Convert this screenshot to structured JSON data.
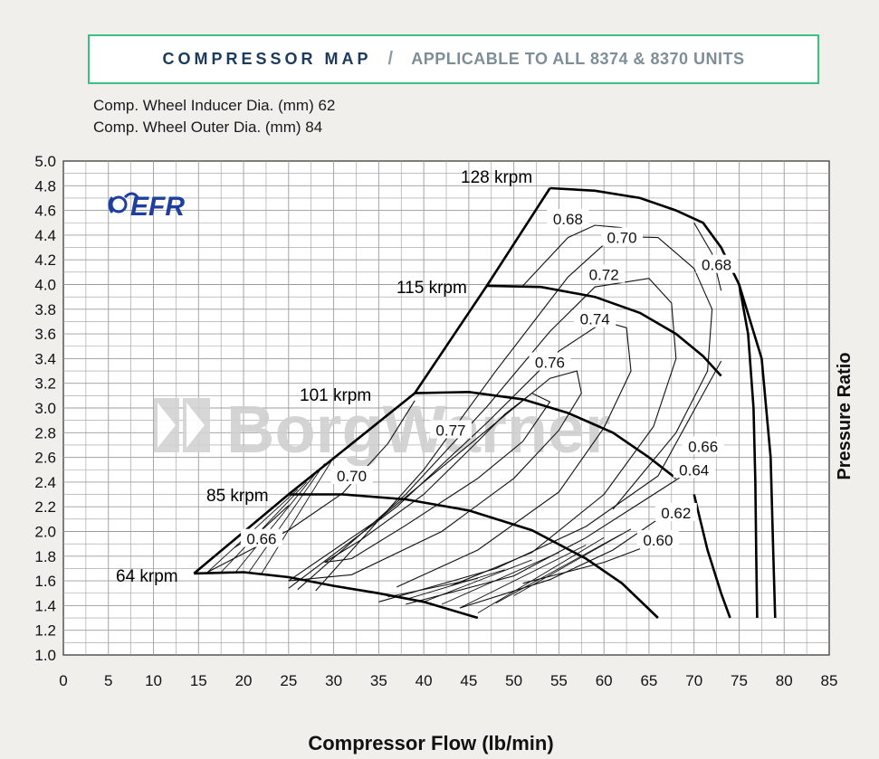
{
  "header": {
    "title": "COMPRESSOR MAP",
    "separator": "/",
    "subtitle": "APPLICABLE TO ALL 8374 & 8370 UNITS"
  },
  "specs": {
    "inducer": "Comp. Wheel Inducer Dia. (mm) 62",
    "outer": "Comp. Wheel Outer Dia. (mm) 84"
  },
  "logos": {
    "efr": "EFR",
    "watermark": "BorgWarner"
  },
  "colors": {
    "title_border": "#3dbf7f",
    "title_text": "#1b3a5c",
    "efr_blue": "#1e3f9e",
    "grid": "#999999",
    "watermark": "#c8c8c8"
  },
  "chart_data": {
    "type": "line",
    "title": "Compressor Map",
    "xlabel": "Compressor Flow (lb/min)",
    "ylabel": "Pressure Ratio",
    "xlim": [
      0,
      85
    ],
    "ylim": [
      1.0,
      5.0
    ],
    "xticks": [
      0,
      5,
      10,
      15,
      20,
      25,
      30,
      35,
      40,
      45,
      50,
      55,
      60,
      65,
      70,
      75,
      80,
      85
    ],
    "yticks": [
      1.0,
      1.2,
      1.4,
      1.6,
      1.8,
      2.0,
      2.2,
      2.4,
      2.6,
      2.8,
      3.0,
      3.2,
      3.4,
      3.6,
      3.8,
      4.0,
      4.2,
      4.4,
      4.6,
      4.8,
      5.0
    ],
    "grid": true,
    "surge_line": [
      [
        14.5,
        1.66
      ],
      [
        25,
        2.3
      ],
      [
        39,
        3.12
      ],
      [
        47,
        3.99
      ],
      [
        54,
        4.78
      ]
    ],
    "speed_lines": [
      {
        "name": "64 krpm",
        "label": "64 krpm",
        "points": [
          [
            14.5,
            1.66
          ],
          [
            20,
            1.67
          ],
          [
            25,
            1.63
          ],
          [
            30,
            1.56
          ],
          [
            35,
            1.5
          ],
          [
            40,
            1.43
          ],
          [
            46,
            1.3
          ]
        ]
      },
      {
        "name": "85 krpm",
        "label": "85 krpm",
        "points": [
          [
            25,
            2.3
          ],
          [
            31,
            2.3
          ],
          [
            38,
            2.26
          ],
          [
            45,
            2.17
          ],
          [
            52,
            2.01
          ],
          [
            58,
            1.78
          ],
          [
            62,
            1.58
          ],
          [
            66,
            1.3
          ]
        ]
      },
      {
        "name": "101 krpm",
        "label": "101 krpm",
        "points": [
          [
            39,
            3.12
          ],
          [
            45,
            3.13
          ],
          [
            51,
            3.07
          ],
          [
            56,
            2.96
          ],
          [
            61,
            2.8
          ],
          [
            65,
            2.6
          ],
          [
            68,
            2.43
          ]
        ]
      },
      {
        "name": "115 krpm",
        "label": "115 krpm",
        "points": [
          [
            47,
            3.99
          ],
          [
            53,
            3.98
          ],
          [
            59,
            3.9
          ],
          [
            64,
            3.77
          ],
          [
            68,
            3.6
          ],
          [
            71,
            3.42
          ],
          [
            73,
            3.26
          ]
        ]
      },
      {
        "name": "128 krpm",
        "label": "128 krpm",
        "points": [
          [
            54,
            4.78
          ],
          [
            59,
            4.76
          ],
          [
            64,
            4.7
          ],
          [
            68,
            4.6
          ],
          [
            71,
            4.5
          ],
          [
            73,
            4.3
          ],
          [
            75,
            4.0
          ],
          [
            77.5,
            3.4
          ],
          [
            78.5,
            2.6
          ],
          [
            78.8,
            1.8
          ],
          [
            79,
            1.3
          ]
        ]
      }
    ],
    "choke_lines": [
      {
        "name": "choke-outer",
        "points": [
          [
            75,
            4.0
          ],
          [
            76,
            3.6
          ],
          [
            76.6,
            3.0
          ],
          [
            76.8,
            2.4
          ],
          [
            76.9,
            1.8
          ],
          [
            77,
            1.3
          ]
        ]
      },
      {
        "name": "choke-inner",
        "points": [
          [
            70,
            2.3
          ],
          [
            71.5,
            1.85
          ],
          [
            73,
            1.5
          ],
          [
            74,
            1.3
          ]
        ]
      }
    ],
    "efficiency_islands": [
      {
        "label": "0.77",
        "label_at": [
          43,
          2.82
        ],
        "closed": true,
        "points": [
          [
            29,
            1.75
          ],
          [
            33,
            1.93
          ],
          [
            40,
            2.3
          ],
          [
            46,
            2.73
          ],
          [
            49,
            2.95
          ],
          [
            52,
            3.12
          ],
          [
            54,
            3.05
          ],
          [
            51,
            2.73
          ],
          [
            46,
            2.43
          ],
          [
            38,
            2.05
          ],
          [
            32,
            1.78
          ],
          [
            29,
            1.75
          ]
        ]
      },
      {
        "label": "0.76",
        "label_at": [
          54,
          3.37
        ],
        "closed": true,
        "points": [
          [
            25,
            1.6
          ],
          [
            35,
            2.1
          ],
          [
            45,
            2.7
          ],
          [
            54,
            3.24
          ],
          [
            57,
            3.3
          ],
          [
            57.5,
            3.12
          ],
          [
            55,
            2.82
          ],
          [
            50,
            2.43
          ],
          [
            42,
            2.0
          ],
          [
            32,
            1.65
          ],
          [
            25,
            1.6
          ]
        ]
      },
      {
        "label": "0.74",
        "label_at": [
          59,
          3.72
        ],
        "closed": false,
        "points": [
          [
            25,
            1.54
          ],
          [
            37,
            2.2
          ],
          [
            47,
            2.88
          ],
          [
            55,
            3.46
          ],
          [
            60,
            3.7
          ],
          [
            62.5,
            3.65
          ],
          [
            63,
            3.3
          ],
          [
            60,
            2.84
          ],
          [
            55,
            2.32
          ],
          [
            46,
            1.85
          ],
          [
            37,
            1.55
          ]
        ]
      },
      {
        "label": "0.72",
        "label_at": [
          60,
          4.08
        ],
        "closed": false,
        "points": [
          [
            26,
            1.53
          ],
          [
            38,
            2.3
          ],
          [
            47,
            3.01
          ],
          [
            54,
            3.62
          ],
          [
            59,
            3.98
          ],
          [
            65,
            4.05
          ],
          [
            67.5,
            3.85
          ],
          [
            68,
            3.4
          ],
          [
            65.5,
            2.85
          ],
          [
            60,
            2.3
          ],
          [
            52,
            1.83
          ],
          [
            43,
            1.56
          ]
        ]
      },
      {
        "label": "0.70",
        "label_at": [
          62,
          4.38
        ],
        "closed": false,
        "points": [
          [
            28,
            1.52
          ],
          [
            40,
            2.5
          ],
          [
            48,
            3.3
          ],
          [
            56,
            4.06
          ],
          [
            61,
            4.39
          ],
          [
            66,
            4.38
          ],
          [
            70,
            4.13
          ],
          [
            72,
            3.8
          ],
          [
            71.5,
            3.3
          ],
          [
            68,
            2.8
          ],
          [
            61,
            2.18
          ]
        ]
      },
      {
        "label": "0.68",
        "label_at": [
          56,
          4.53
        ],
        "closed": false,
        "points": [
          [
            51,
            3.99
          ],
          [
            56,
            4.38
          ],
          [
            59,
            4.48
          ],
          [
            62,
            4.46
          ]
        ]
      },
      {
        "label": "0.68",
        "label_at": [
          72.5,
          4.16
        ],
        "closed": false,
        "points": [
          [
            70,
            4.5
          ],
          [
            72,
            4.25
          ],
          [
            73,
            3.95
          ]
        ]
      },
      {
        "label": "0.70",
        "label_at": [
          32,
          2.45
        ],
        "closed": false,
        "points": [
          [
            16,
            1.67
          ],
          [
            25,
            2.01
          ],
          [
            31,
            2.31
          ],
          [
            36,
            2.71
          ],
          [
            39,
            3.06
          ]
        ]
      },
      {
        "label": "0.66",
        "label_at": [
          22,
          1.94
        ],
        "closed": false,
        "points": [
          [
            19,
            1.87
          ],
          [
            22,
            2.01
          ],
          [
            25,
            2.21
          ]
        ]
      },
      {
        "label": "0.66",
        "label_at": [
          71,
          2.69
        ],
        "closed": false,
        "points": [
          [
            35,
            1.43
          ],
          [
            48,
            1.7
          ],
          [
            58,
            2.04
          ],
          [
            66,
            2.45
          ],
          [
            73,
            3.38
          ]
        ]
      },
      {
        "label": "0.64",
        "label_at": [
          70,
          2.5
        ],
        "closed": false,
        "points": [
          [
            38,
            1.41
          ],
          [
            50,
            1.64
          ],
          [
            58,
            1.95
          ],
          [
            64,
            2.23
          ],
          [
            68.5,
            2.44
          ]
        ]
      },
      {
        "label": "0.62",
        "label_at": [
          68,
          2.15
        ],
        "closed": false,
        "points": [
          [
            44,
            1.38
          ],
          [
            54,
            1.61
          ],
          [
            61,
            1.85
          ],
          [
            66,
            2.1
          ]
        ]
      },
      {
        "label": "0.60",
        "label_at": [
          66,
          1.93
        ],
        "closed": false,
        "points": [
          [
            51,
            1.58
          ],
          [
            60,
            1.75
          ],
          [
            64,
            1.86
          ]
        ]
      }
    ],
    "hatch_lines": [
      [
        [
          14.5,
          1.66
        ],
        [
          25,
          2.3
        ]
      ],
      [
        [
          16,
          1.67
        ],
        [
          26,
          2.34
        ]
      ],
      [
        [
          17.5,
          1.67
        ],
        [
          27,
          2.4
        ]
      ],
      [
        [
          19,
          1.66
        ],
        [
          28,
          2.47
        ]
      ],
      [
        [
          20.5,
          1.66
        ],
        [
          29,
          2.55
        ]
      ],
      [
        [
          22,
          1.66
        ],
        [
          30,
          2.6
        ]
      ],
      [
        [
          36,
          1.47
        ],
        [
          46,
          1.62
        ]
      ],
      [
        [
          38,
          1.45
        ],
        [
          49,
          1.69
        ]
      ],
      [
        [
          40,
          1.43
        ],
        [
          52,
          1.77
        ]
      ],
      [
        [
          42,
          1.41
        ],
        [
          55,
          1.83
        ]
      ],
      [
        [
          44,
          1.38
        ],
        [
          58,
          1.89
        ]
      ],
      [
        [
          46,
          1.34
        ],
        [
          60,
          1.95
        ]
      ],
      [
        [
          48,
          1.42
        ],
        [
          62,
          1.98
        ]
      ],
      [
        [
          50,
          1.48
        ],
        [
          63,
          2.02
        ]
      ]
    ]
  }
}
